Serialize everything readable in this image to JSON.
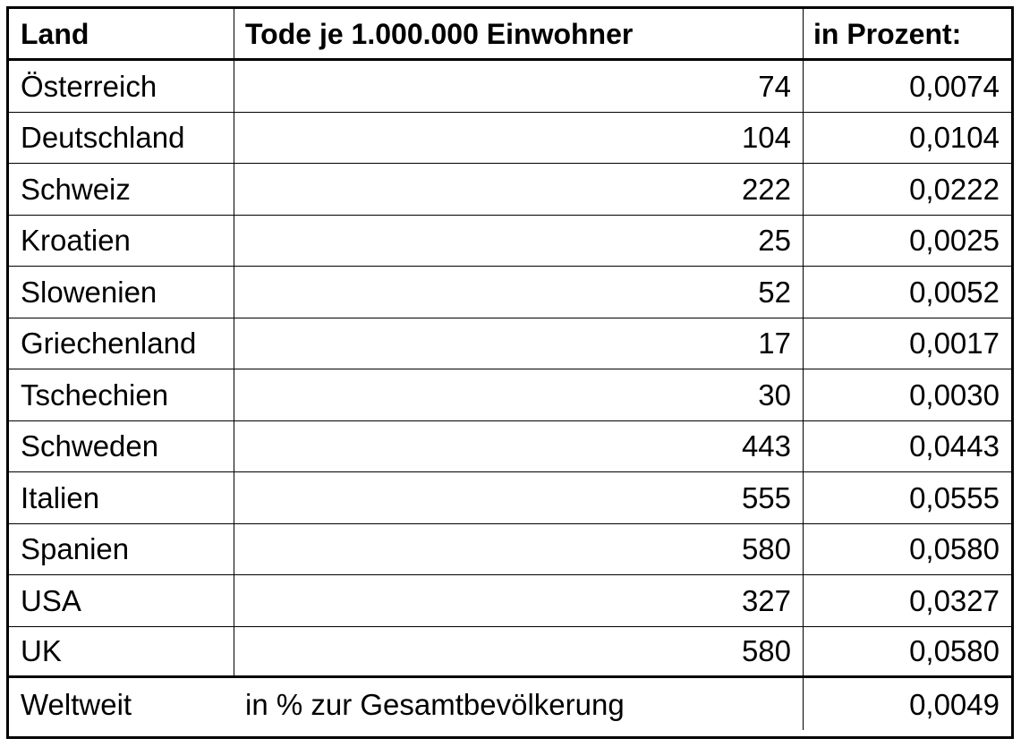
{
  "table": {
    "headers": [
      "Land",
      "Tode je 1.000.000 Einwohner",
      "in Prozent:"
    ],
    "rows": [
      {
        "land": "Österreich",
        "tode": "74",
        "prozent": "0,0074"
      },
      {
        "land": "Deutschland",
        "tode": "104",
        "prozent": "0,0104"
      },
      {
        "land": "Schweiz",
        "tode": "222",
        "prozent": "0,0222"
      },
      {
        "land": "Kroatien",
        "tode": "25",
        "prozent": "0,0025"
      },
      {
        "land": "Slowenien",
        "tode": "52",
        "prozent": "0,0052"
      },
      {
        "land": "Griechenland",
        "tode": "17",
        "prozent": "0,0017"
      },
      {
        "land": "Tschechien",
        "tode": "30",
        "prozent": "0,0030"
      },
      {
        "land": "Schweden",
        "tode": "443",
        "prozent": "0,0443"
      },
      {
        "land": "Italien",
        "tode": "555",
        "prozent": "0,0555"
      },
      {
        "land": "Spanien",
        "tode": "580",
        "prozent": "0,0580"
      },
      {
        "land": "USA",
        "tode": "327",
        "prozent": "0,0327"
      },
      {
        "land": "UK",
        "tode": "580",
        "prozent": "0,0580"
      }
    ],
    "footer": {
      "label": "Weltweit",
      "description": "in % zur Gesamtbevölkerung",
      "value": "0,0049"
    }
  }
}
